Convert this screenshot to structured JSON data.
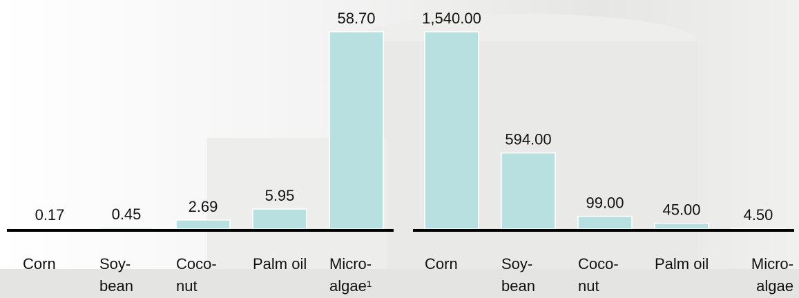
{
  "chart_data": [
    {
      "type": "bar",
      "categories": [
        [
          "Corn"
        ],
        [
          "Soy-",
          "bean"
        ],
        [
          "Coco-",
          "nut"
        ],
        [
          "Palm oil"
        ],
        [
          "Micro-",
          "algae¹"
        ]
      ],
      "values": [
        0.17,
        0.45,
        2.69,
        5.95,
        58.7
      ],
      "value_labels": [
        "0.17",
        "0.45",
        "2.69",
        "5.95",
        "58.70"
      ],
      "color": "#b8e0e1",
      "ylim": [
        0,
        58.7
      ]
    },
    {
      "type": "bar",
      "categories": [
        [
          "Corn"
        ],
        [
          "Soy-",
          "bean"
        ],
        [
          "Coco-",
          "nut"
        ],
        [
          "Palm oil"
        ],
        [
          "Micro-",
          "algae"
        ]
      ],
      "values": [
        1540,
        594,
        99,
        45,
        4.5
      ],
      "value_labels": [
        "1,540.00",
        "594.00",
        "99.00",
        "45.00",
        "4.50"
      ],
      "color": "#b8e0e1",
      "ylim": [
        0,
        1540
      ]
    }
  ]
}
